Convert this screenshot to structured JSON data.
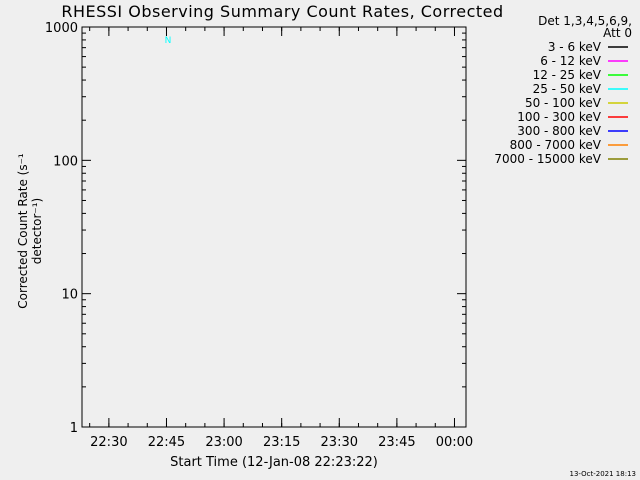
{
  "chart_data": {
    "type": "line",
    "title": "RHESSI Observing Summary Count Rates, Corrected",
    "xlabel": "Start Time (12-Jan-08 22:23:22)",
    "ylabel": "Corrected Count Rate (s⁻¹ detector⁻¹)",
    "y_scale": "log",
    "ylim": [
      1,
      1000
    ],
    "y_ticks": [
      1,
      10,
      100,
      1000
    ],
    "y_tick_labels": [
      "1",
      "10",
      "100",
      "1000"
    ],
    "xlim": [
      "22:23",
      "00:03"
    ],
    "x_ticks": [
      "22:30",
      "22:45",
      "23:00",
      "23:15",
      "23:30",
      "23:45",
      "00:00"
    ],
    "x": [
      "22:23",
      "22:27",
      "22:31",
      "22:35",
      "22:39",
      "22:43",
      "22:47",
      "22:51",
      "22:55",
      "22:59",
      "23:03",
      "23:07",
      "23:11",
      "23:15",
      "23:19",
      "23:23",
      "23:27",
      "23:31",
      "23:35",
      "23:39",
      "23:43",
      "23:47",
      "23:51",
      "23:55",
      "23:59",
      "00:03"
    ],
    "legend_header": [
      "Det 1,3,4,5,6,9,",
      "Att 0"
    ],
    "legend_position": "right",
    "series": [
      {
        "name": "3 - 6 keV",
        "color": "#000000",
        "values": [
          null,
          null,
          null,
          null,
          null,
          null,
          null,
          null,
          null,
          null,
          null,
          null,
          null,
          null,
          null,
          null,
          null,
          null,
          null,
          null,
          null,
          null,
          null,
          null,
          null,
          null
        ]
      },
      {
        "name": "6 - 12 keV",
        "color": "#ff00ff",
        "values": [
          null,
          null,
          null,
          null,
          null,
          null,
          null,
          null,
          null,
          null,
          null,
          null,
          null,
          null,
          null,
          null,
          null,
          null,
          null,
          null,
          null,
          null,
          null,
          null,
          null,
          null
        ]
      },
      {
        "name": "12 - 25 keV",
        "color": "#00ff00",
        "values": [
          null,
          null,
          null,
          null,
          null,
          null,
          null,
          null,
          null,
          null,
          null,
          null,
          null,
          null,
          null,
          null,
          null,
          null,
          null,
          null,
          null,
          null,
          null,
          null,
          null,
          null
        ]
      },
      {
        "name": "25 - 50 keV",
        "color": "#00ffff",
        "values": [
          null,
          null,
          null,
          null,
          null,
          null,
          null,
          null,
          null,
          null,
          null,
          null,
          null,
          null,
          null,
          null,
          null,
          null,
          null,
          null,
          null,
          null,
          null,
          null,
          null,
          null
        ]
      },
      {
        "name": "50 - 100 keV",
        "color": "#cccc00",
        "values": [
          null,
          null,
          null,
          null,
          null,
          null,
          null,
          null,
          null,
          null,
          null,
          null,
          null,
          null,
          null,
          null,
          null,
          null,
          null,
          null,
          null,
          null,
          null,
          null,
          null,
          null
        ]
      },
      {
        "name": "100 - 300 keV",
        "color": "#ff0000",
        "values": [
          null,
          null,
          null,
          null,
          null,
          null,
          null,
          null,
          null,
          null,
          null,
          null,
          null,
          null,
          null,
          null,
          null,
          null,
          null,
          null,
          null,
          null,
          null,
          null,
          null,
          null
        ]
      },
      {
        "name": "300 - 800 keV",
        "color": "#0000ff",
        "values": [
          null,
          null,
          null,
          null,
          null,
          null,
          null,
          null,
          null,
          null,
          null,
          null,
          null,
          null,
          null,
          null,
          null,
          null,
          null,
          null,
          null,
          null,
          null,
          null,
          null,
          null
        ]
      },
      {
        "name": "800 - 7000 keV",
        "color": "#ff8000",
        "values": [
          null,
          null,
          null,
          null,
          null,
          null,
          null,
          null,
          null,
          null,
          null,
          null,
          null,
          null,
          null,
          null,
          null,
          null,
          null,
          null,
          null,
          null,
          null,
          null,
          null,
          null
        ]
      },
      {
        "name": "7000 - 15000 keV",
        "color": "#808000",
        "values": [
          null,
          null,
          null,
          null,
          null,
          null,
          null,
          null,
          null,
          null,
          null,
          null,
          null,
          null,
          null,
          null,
          null,
          null,
          null,
          null,
          null,
          null,
          null,
          null,
          null,
          null
        ]
      }
    ],
    "annotations": [
      {
        "text": "N",
        "at": "22:44"
      }
    ]
  },
  "timestamp": "13-Oct-2021 18:13"
}
